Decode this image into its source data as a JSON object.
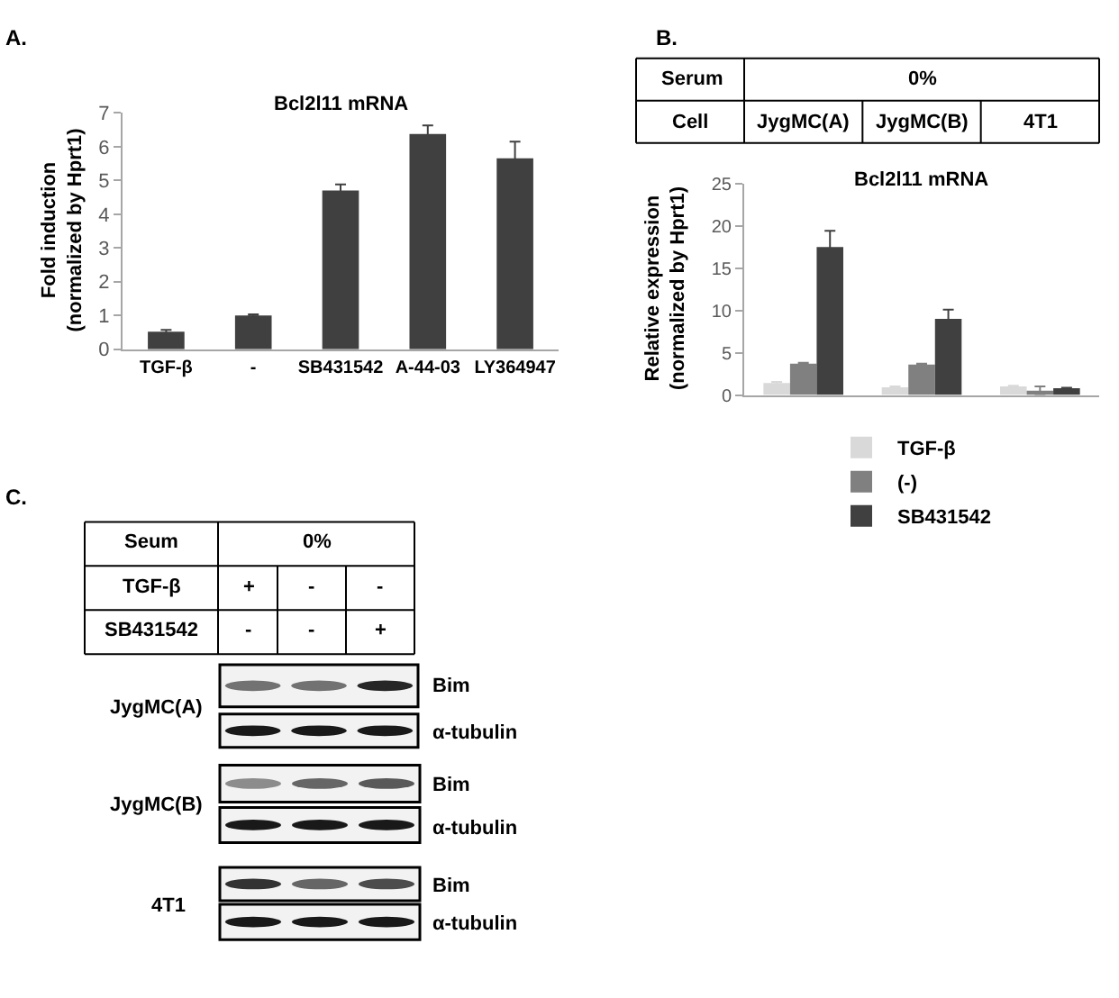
{
  "chart_data": [
    {
      "type": "bar",
      "title": "Bcl2l11 mRNA",
      "ylabel": "Fold induction\n(normalized by Hprt1)",
      "annotations": [
        "A."
      ],
      "categories": [
        "TGF-β",
        "-",
        "SB431542",
        "A-44-03",
        "LY364947"
      ],
      "values": [
        0.52,
        1.0,
        4.7,
        6.38,
        5.66
      ],
      "errors": [
        0.05,
        0.03,
        0.18,
        0.25,
        0.49
      ],
      "color": "#404040",
      "ylim": [
        0,
        7
      ],
      "yticks": [
        0,
        1,
        2,
        3,
        4,
        5,
        6,
        7
      ]
    },
    {
      "type": "bar",
      "title": "Bcl2l11 mRNA",
      "xlabel": "Cell",
      "ylabel": "Relative expression\n(normalized by Hprt1)",
      "annotations": [
        "B.",
        "Serum",
        "0%"
      ],
      "categories": [
        "JygMC(A)",
        "JygMC(B)",
        "4T1"
      ],
      "series": [
        {
          "name": "TGF-β",
          "color": "#d9d9d9",
          "values": [
            1.4,
            0.9,
            1.0
          ],
          "errors": [
            0.15,
            0.1,
            0.1
          ]
        },
        {
          "name": "(-)",
          "color": "#808080",
          "values": [
            3.7,
            3.6,
            0.5
          ],
          "errors": [
            0.1,
            0.1,
            0.5
          ]
        },
        {
          "name": "SB431542",
          "color": "#404040",
          "values": [
            17.5,
            9.0,
            0.8
          ],
          "errors": [
            1.9,
            1.1,
            0.05
          ]
        }
      ],
      "ylim": [
        0,
        25
      ],
      "yticks": [
        0,
        5,
        10,
        15,
        20,
        25
      ],
      "legend": "bottom"
    },
    {
      "type": "other",
      "annotations": [
        "C.",
        "Seum",
        "0%",
        "TGF-β",
        "+",
        "-",
        "-",
        "SB431542",
        "-",
        "-",
        "+",
        "JygMC(A)",
        "Bim",
        "α-tubulin",
        "JygMC(B)",
        "Bim",
        "α-tubulin",
        "4T1",
        "Bim",
        "α-tubulin"
      ]
    }
  ]
}
